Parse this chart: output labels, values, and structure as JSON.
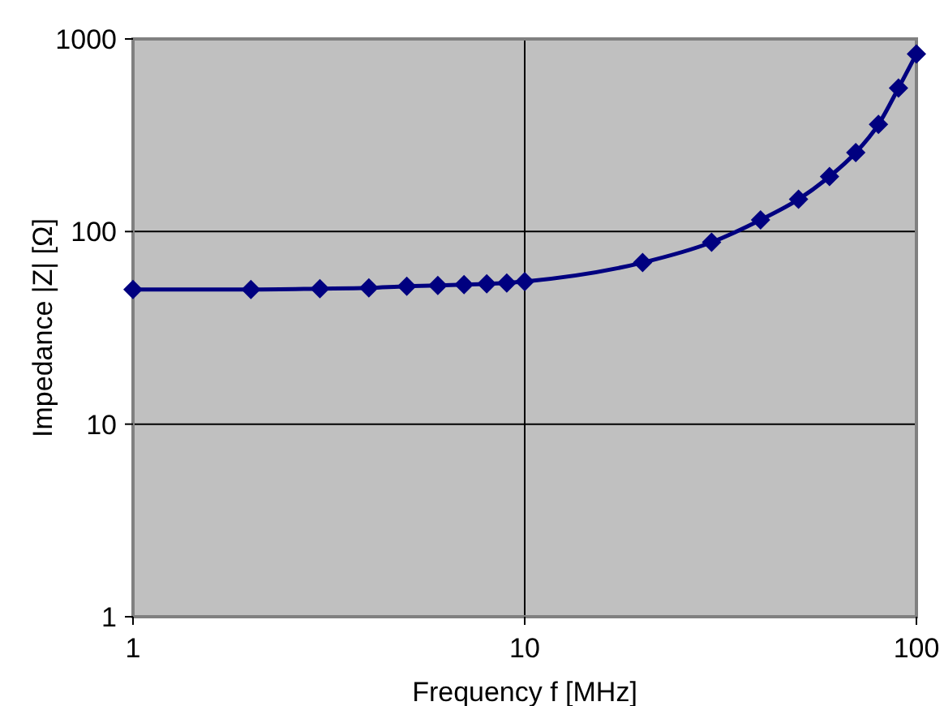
{
  "chart_data": {
    "type": "line",
    "xlabel": "Frequency f [MHz]",
    "ylabel": "Impedance |Z| [Ω]",
    "log": "xy",
    "grid": true,
    "marker": "diamond",
    "line_style": "solid",
    "xlim": [
      1,
      100
    ],
    "xticks": [
      1,
      10,
      100
    ],
    "ylim": [
      1,
      1000
    ],
    "yticks": [
      1,
      10,
      100,
      1000
    ],
    "series": [
      {
        "color": "#000080",
        "x": [
          1,
          2,
          3,
          4,
          5,
          6,
          7,
          8,
          9,
          10,
          20,
          30,
          40,
          50,
          60,
          70,
          80,
          90,
          100
        ],
        "values": [
          50,
          50,
          50.5,
          51,
          52,
          52.5,
          53,
          53.5,
          54,
          55,
          69,
          88,
          115,
          147,
          193,
          257,
          360,
          556,
          836
        ]
      }
    ]
  }
}
